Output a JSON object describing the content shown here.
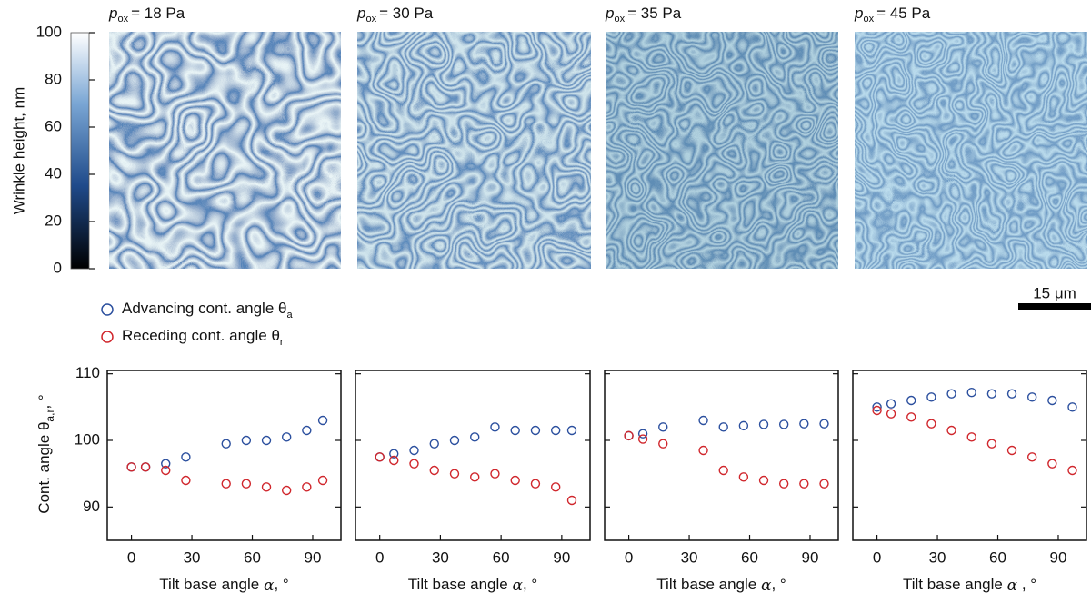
{
  "panels": [
    {
      "symbol": "p",
      "subscript": "ox",
      "text": "= 18 Pa"
    },
    {
      "symbol": "p",
      "subscript": "ox",
      "text": "= 30 Pa"
    },
    {
      "symbol": "p",
      "subscript": "ox",
      "text": "= 35 Pa"
    },
    {
      "symbol": "p",
      "subscript": "ox",
      "text": "= 45 Pa"
    }
  ],
  "colorbar": {
    "label": "Wrinkle height, nm",
    "lim": [
      0,
      100
    ],
    "ticks": [
      0,
      20,
      40,
      60,
      80,
      100
    ]
  },
  "scale_bar": "15 μm",
  "chart_data": [
    {
      "type": "scatter",
      "ylabel": "Cont. angle θ",
      "ylabel_subscript": "a,r",
      "ylabel_suffix": ", °",
      "xlabel": "Tilt base angle ",
      "xlabel_symbol": "α",
      "xlabel_suffix": ", °",
      "xlim": [
        -12,
        104
      ],
      "xticks": [
        0,
        30,
        60,
        90
      ],
      "ylim": [
        85,
        110.5
      ],
      "yticks": [
        90,
        100,
        110
      ],
      "x": [
        0,
        7,
        17,
        27,
        47,
        57,
        67,
        77,
        87,
        95
      ],
      "series": [
        {
          "name": "Advancing cont. angle θ",
          "subscript": "a",
          "color": "#2b4f9e",
          "values": [
            96,
            96,
            96.5,
            97.5,
            99.5,
            100,
            100,
            100.5,
            101.5,
            103
          ]
        },
        {
          "name": "Receding cont. angle θ",
          "subscript": "r",
          "color": "#d0262c",
          "values": [
            96,
            96,
            95.5,
            94,
            93.5,
            93.5,
            93,
            92.5,
            93,
            94
          ]
        }
      ]
    },
    {
      "type": "scatter",
      "xlabel": "Tilt base angle ",
      "xlabel_symbol": "α",
      "xlabel_suffix": ", °",
      "xlim": [
        -12,
        104
      ],
      "xticks": [
        0,
        30,
        60,
        90
      ],
      "ylim": [
        85,
        110.5
      ],
      "yticks": [
        90,
        100,
        110
      ],
      "x": [
        0,
        7,
        17,
        27,
        37,
        47,
        57,
        67,
        77,
        87,
        95
      ],
      "series": [
        {
          "color": "#2b4f9e",
          "values": [
            97.5,
            98,
            98.5,
            99.5,
            100,
            100.5,
            102,
            101.5,
            101.5,
            101.5,
            101.5
          ]
        },
        {
          "color": "#d0262c",
          "values": [
            97.5,
            97,
            96.5,
            95.5,
            95,
            94.5,
            95,
            94,
            93.5,
            93,
            91
          ]
        }
      ]
    },
    {
      "type": "scatter",
      "xlabel": "Tilt base angle ",
      "xlabel_symbol": "α",
      "xlabel_suffix": ", °",
      "xlim": [
        -12,
        104
      ],
      "xticks": [
        0,
        30,
        60,
        90
      ],
      "ylim": [
        85,
        110.5
      ],
      "yticks": [
        90,
        100,
        110
      ],
      "x": [
        0,
        7,
        17,
        37,
        47,
        57,
        67,
        77,
        87,
        97
      ],
      "series": [
        {
          "color": "#2b4f9e",
          "values": [
            100.7,
            101,
            102,
            103,
            102,
            102.2,
            102.4,
            102.4,
            102.5,
            102.5
          ]
        },
        {
          "color": "#d0262c",
          "values": [
            100.7,
            100.2,
            99.5,
            98.5,
            95.5,
            94.5,
            94,
            93.5,
            93.5,
            93.5
          ]
        }
      ]
    },
    {
      "type": "scatter",
      "xlabel": "Tilt base angle ",
      "xlabel_symbol": "α",
      "xlabel_suffix": " , °",
      "xlim": [
        -12,
        104
      ],
      "xticks": [
        0,
        30,
        60,
        90
      ],
      "ylim": [
        85,
        110.5
      ],
      "yticks": [
        90,
        100,
        110
      ],
      "x": [
        0,
        7,
        17,
        27,
        37,
        47,
        57,
        67,
        77,
        87,
        97
      ],
      "series": [
        {
          "color": "#2b4f9e",
          "values": [
            105,
            105.5,
            106,
            106.5,
            107,
            107.2,
            107,
            107,
            106.5,
            106,
            105
          ]
        },
        {
          "color": "#d0262c",
          "values": [
            104.5,
            104,
            103.5,
            102.5,
            101.5,
            100.5,
            99.5,
            98.5,
            97.5,
            96.5,
            95.5
          ]
        }
      ]
    }
  ]
}
